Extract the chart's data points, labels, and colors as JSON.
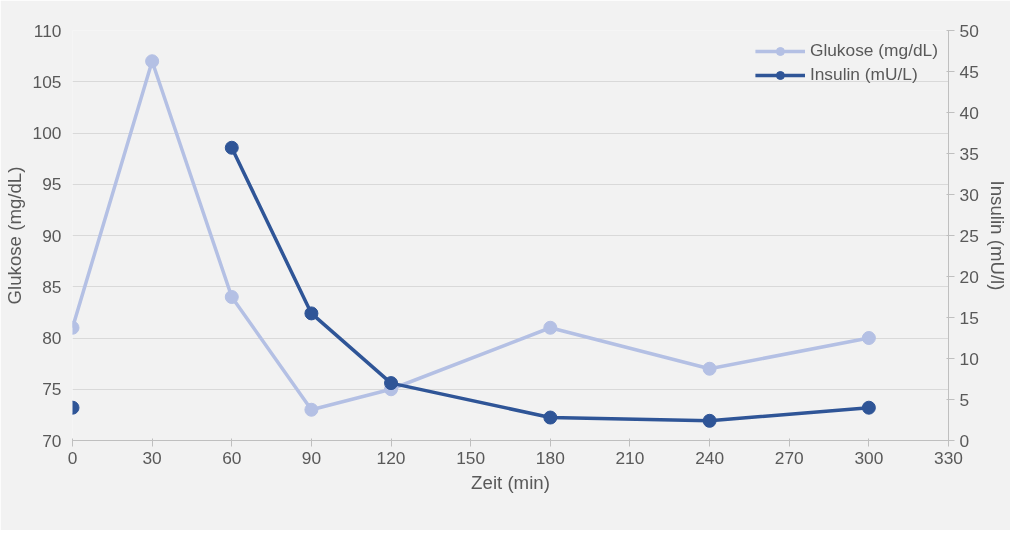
{
  "chart_data": {
    "type": "line",
    "xlabel": "Zeit (min)",
    "ylabel": "Glukose (mg/dL)",
    "y2label": "Insulin (mU/l)",
    "x": [
      0,
      30,
      60,
      90,
      120,
      180,
      240,
      300
    ],
    "series": [
      {
        "name": "Glukose (mg/dL)",
        "color": "#b4c0e4",
        "values": [
          81,
          107,
          84,
          73,
          75,
          81,
          77,
          80
        ]
      },
      {
        "name": "Insulin (mU/L)",
        "color": "#2f5597",
        "axis": "y2",
        "values": [
          4,
          null,
          35.7,
          15.5,
          7,
          2.8,
          2.4,
          4
        ]
      }
    ],
    "xlim": [
      0,
      330
    ],
    "xticks": [
      0,
      30,
      60,
      90,
      120,
      150,
      180,
      210,
      240,
      270,
      300,
      330
    ],
    "ylim": [
      70,
      110
    ],
    "yticks": [
      70,
      75,
      80,
      85,
      90,
      95,
      100,
      105,
      110
    ],
    "y2lim": [
      0,
      50
    ],
    "y2ticks": [
      0,
      5,
      10,
      15,
      20,
      25,
      30,
      35,
      40,
      45,
      50
    ],
    "grid": "y",
    "legend": "top right",
    "marker": "circle",
    "line_style": "solid"
  }
}
